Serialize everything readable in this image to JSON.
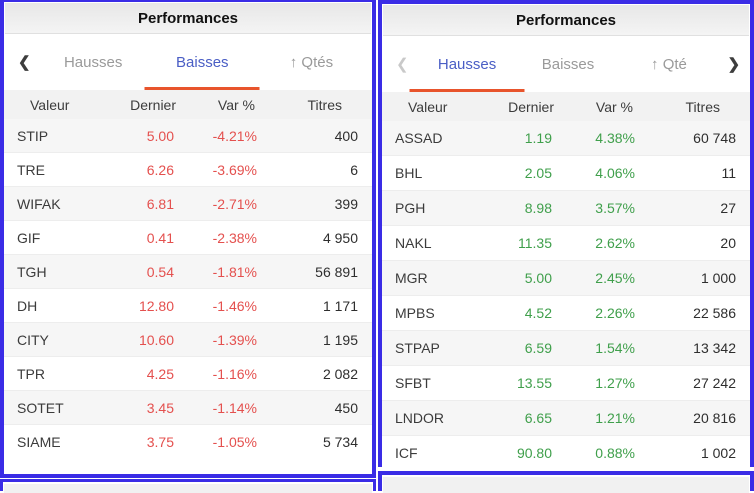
{
  "columns": [
    "Valeur",
    "Dernier",
    "Var %",
    "Titres"
  ],
  "icons": {
    "chevron_left": "❮",
    "chevron_right": "❯"
  },
  "colors": {
    "panel_border": "#3a2ce6",
    "negative_value": "#e4504e",
    "positive_value": "#3f9f4b",
    "tab_active": "#4a5ec5",
    "tab_inactive": "#9a9a9a",
    "tab_underline": "#e8542c"
  },
  "left_panel": {
    "title": "Performances",
    "tabs": [
      {
        "label": "Hausses",
        "active": false
      },
      {
        "label": "Baisses",
        "active": true
      },
      {
        "label": "↑ Qtés",
        "active": false
      }
    ],
    "rows": [
      {
        "valeur": "STIP",
        "dernier": "5.00",
        "var": "-4.21%",
        "titres": "400"
      },
      {
        "valeur": "TRE",
        "dernier": "6.26",
        "var": "-3.69%",
        "titres": "6"
      },
      {
        "valeur": "WIFAK",
        "dernier": "6.81",
        "var": "-2.71%",
        "titres": "399"
      },
      {
        "valeur": "GIF",
        "dernier": "0.41",
        "var": "-2.38%",
        "titres": "4 950"
      },
      {
        "valeur": "TGH",
        "dernier": "0.54",
        "var": "-1.81%",
        "titres": "56 891"
      },
      {
        "valeur": "DH",
        "dernier": "12.80",
        "var": "-1.46%",
        "titres": "1 171"
      },
      {
        "valeur": "CITY",
        "dernier": "10.60",
        "var": "-1.39%",
        "titres": "1 195"
      },
      {
        "valeur": "TPR",
        "dernier": "4.25",
        "var": "-1.16%",
        "titres": "2 082"
      },
      {
        "valeur": "SOTET",
        "dernier": "3.45",
        "var": "-1.14%",
        "titres": "450"
      },
      {
        "valeur": "SIAME",
        "dernier": "3.75",
        "var": "-1.05%",
        "titres": "5 734"
      }
    ]
  },
  "right_panel": {
    "title": "Performances",
    "tabs": [
      {
        "label": "Hausses",
        "active": true
      },
      {
        "label": "Baisses",
        "active": false
      },
      {
        "label": "↑ Qté",
        "active": false
      }
    ],
    "rows": [
      {
        "valeur": "ASSAD",
        "dernier": "1.19",
        "var": "4.38%",
        "titres": "60 748"
      },
      {
        "valeur": "BHL",
        "dernier": "2.05",
        "var": "4.06%",
        "titres": "11"
      },
      {
        "valeur": "PGH",
        "dernier": "8.98",
        "var": "3.57%",
        "titres": "27"
      },
      {
        "valeur": "NAKL",
        "dernier": "11.35",
        "var": "2.62%",
        "titres": "20"
      },
      {
        "valeur": "MGR",
        "dernier": "5.00",
        "var": "2.45%",
        "titres": "1 000"
      },
      {
        "valeur": "MPBS",
        "dernier": "4.52",
        "var": "2.26%",
        "titres": "22 586"
      },
      {
        "valeur": "STPAP",
        "dernier": "6.59",
        "var": "1.54%",
        "titres": "13 342"
      },
      {
        "valeur": "SFBT",
        "dernier": "13.55",
        "var": "1.27%",
        "titres": "27 242"
      },
      {
        "valeur": "LNDOR",
        "dernier": "6.65",
        "var": "1.21%",
        "titres": "20 816"
      },
      {
        "valeur": "ICF",
        "dernier": "90.80",
        "var": "0.88%",
        "titres": "1 002"
      }
    ]
  }
}
